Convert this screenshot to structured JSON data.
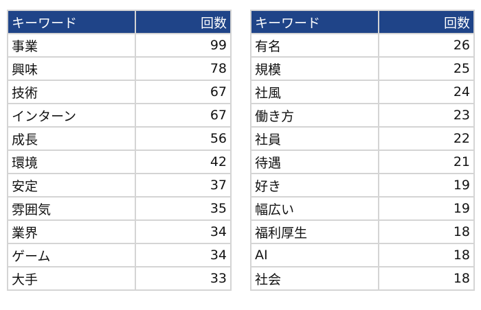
{
  "colors": {
    "header_bg": "#1f4488",
    "header_text": "#ffffff",
    "border": "#d4d4d4"
  },
  "tables": [
    {
      "headers": [
        "キーワード",
        "回数"
      ],
      "rows": [
        [
          "事業",
          "99"
        ],
        [
          "興味",
          "78"
        ],
        [
          "技術",
          "67"
        ],
        [
          "インターン",
          "67"
        ],
        [
          "成長",
          "56"
        ],
        [
          "環境",
          "42"
        ],
        [
          "安定",
          "37"
        ],
        [
          "雰囲気",
          "35"
        ],
        [
          "業界",
          "34"
        ],
        [
          "ゲーム",
          "34"
        ],
        [
          "大手",
          "33"
        ]
      ]
    },
    {
      "headers": [
        "キーワード",
        "回数"
      ],
      "rows": [
        [
          "有名",
          "26"
        ],
        [
          "規模",
          "25"
        ],
        [
          "社風",
          "24"
        ],
        [
          "働き方",
          "23"
        ],
        [
          "社員",
          "22"
        ],
        [
          "待遇",
          "21"
        ],
        [
          "好き",
          "19"
        ],
        [
          "幅広い",
          "19"
        ],
        [
          "福利厚生",
          "18"
        ],
        [
          "AI",
          "18"
        ],
        [
          "社会",
          "18"
        ]
      ]
    }
  ]
}
